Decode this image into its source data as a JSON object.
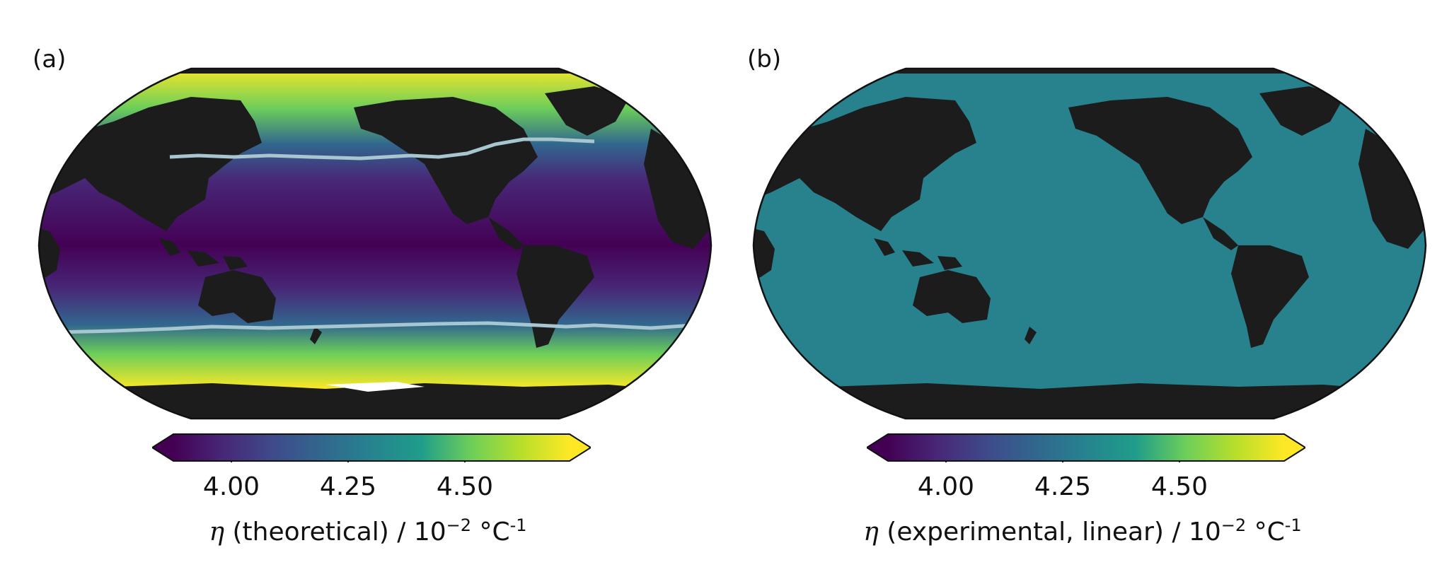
{
  "colors": {
    "land": "#1c1c1c",
    "coast_edge": "#ffffff",
    "contour": "#a7c6cf",
    "uniform_ocean": "#27828e",
    "viridis": [
      "#440154",
      "#482777",
      "#3f4a8a",
      "#31678e",
      "#26838f",
      "#1f9d8a",
      "#6cce5a",
      "#b6de2b",
      "#fee825"
    ]
  },
  "panels": [
    {
      "label": "(a)",
      "field": "latitudinal-gradient",
      "colorbar": {
        "extend": "both",
        "ticks": [
          "4.00",
          "4.25",
          "4.50"
        ],
        "title_var": "η",
        "title_text": " (theoretical) / 10",
        "title_exp": "−2",
        "title_unit": " °C",
        "title_unit_exp": "-1"
      }
    },
    {
      "label": "(b)",
      "field": "uniform",
      "colorbar": {
        "extend": "both",
        "ticks": [
          "4.00",
          "4.25",
          "4.50"
        ],
        "title_var": "η",
        "title_text": " (experimental, linear) / 10",
        "title_exp": "−2",
        "title_unit": " °C",
        "title_unit_exp": "-1"
      }
    }
  ]
}
